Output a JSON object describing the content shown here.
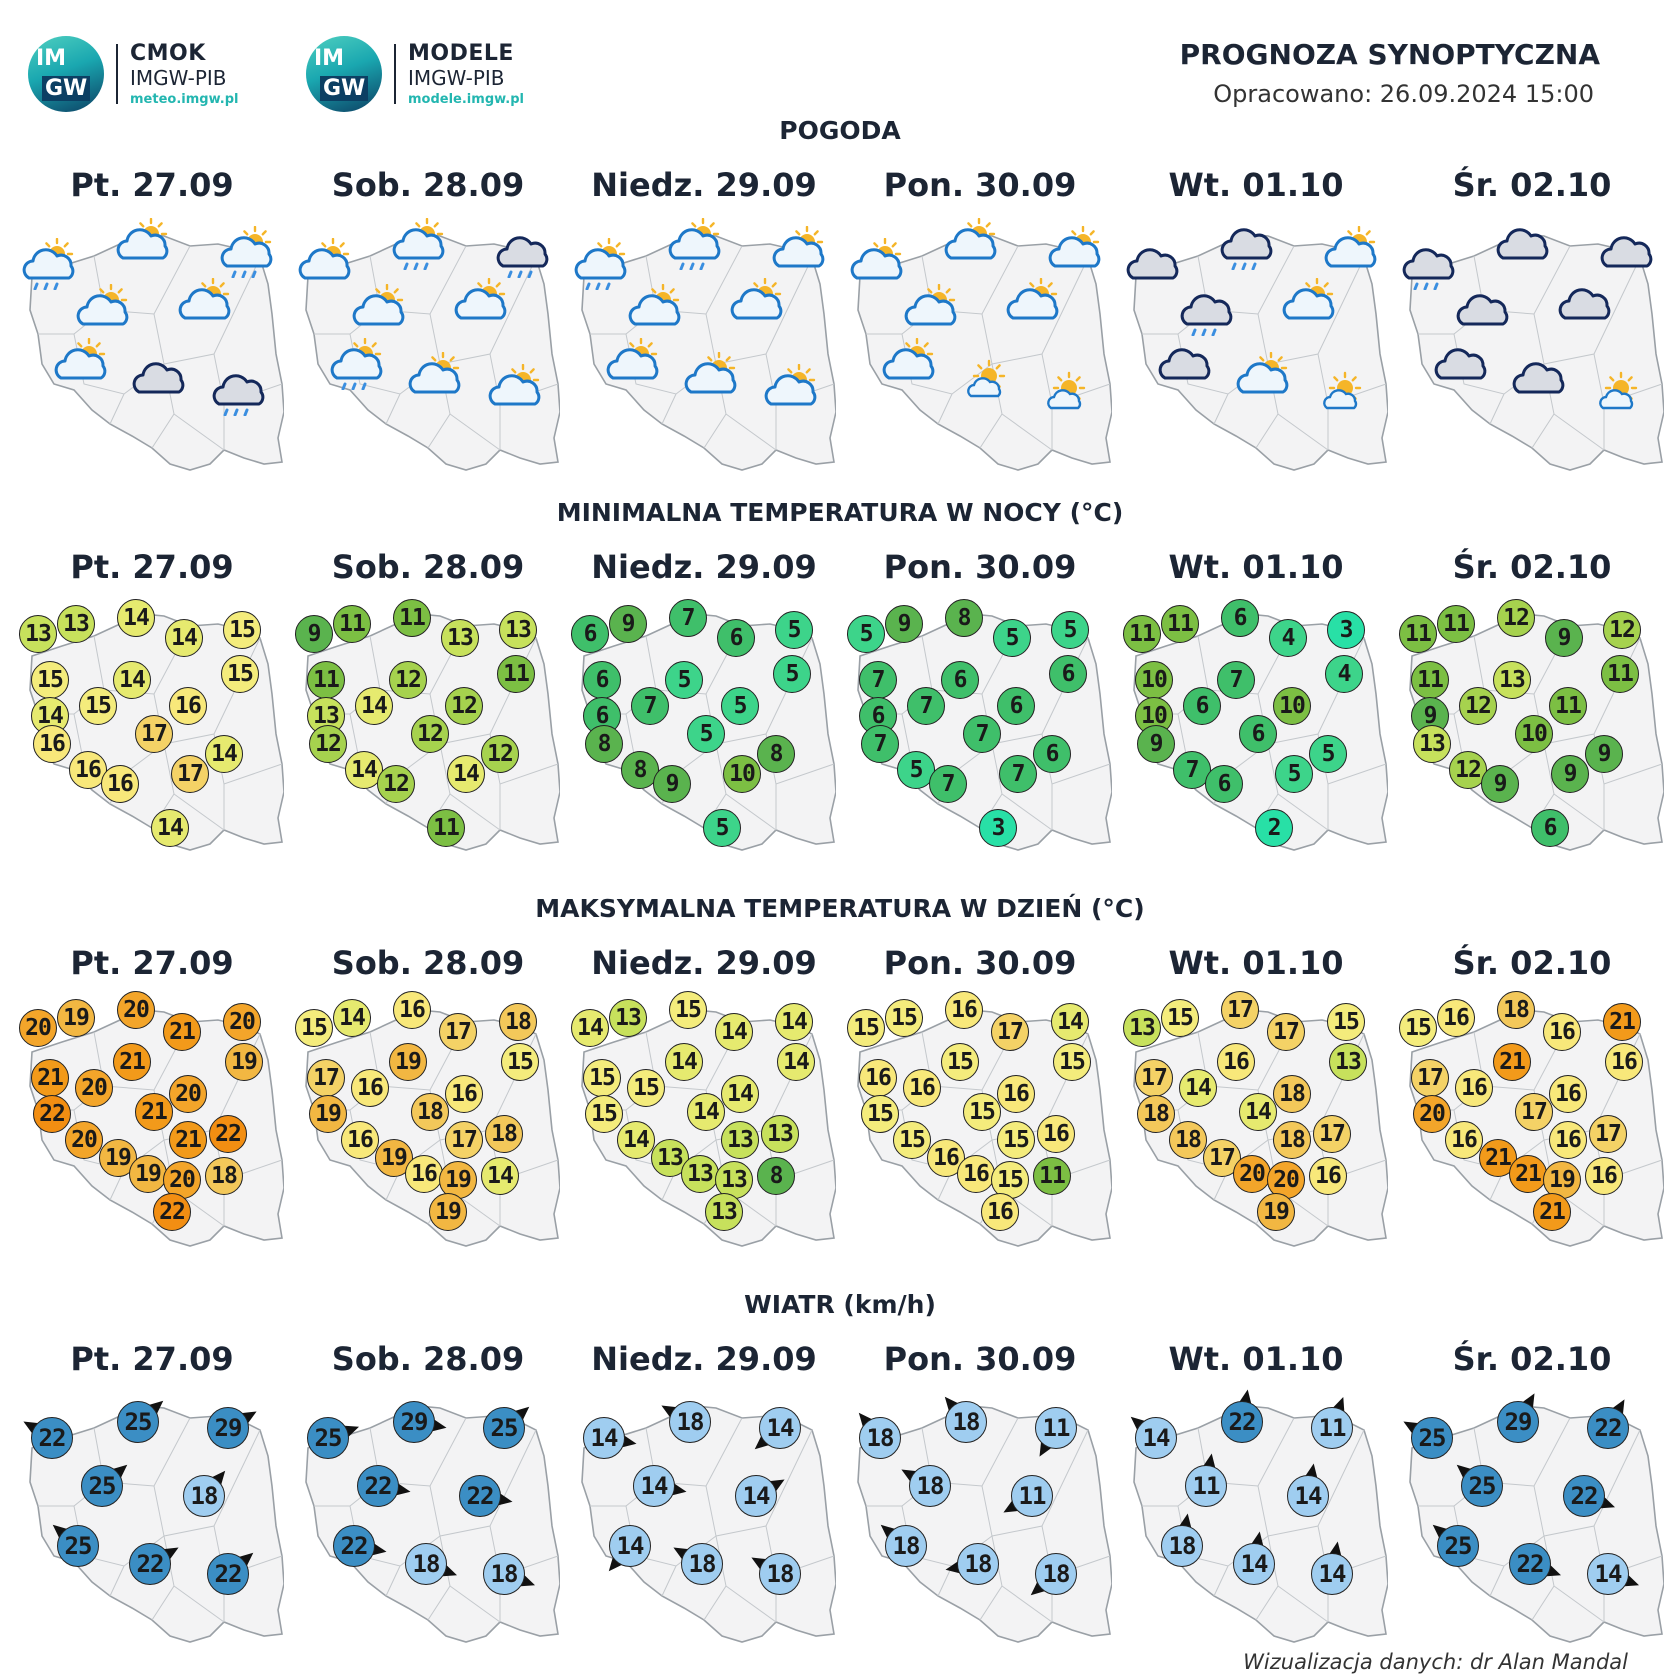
{
  "header": {
    "logo1": {
      "title": "CMOK",
      "sub": "IMGW-PIB",
      "url": "meteo.imgw.pl",
      "mark_top": "IM",
      "mark_bottom": "GW"
    },
    "logo2": {
      "title": "MODELE",
      "sub": "IMGW-PIB",
      "url": "modele.imgw.pl",
      "mark_top": "IM",
      "mark_bottom": "GW"
    },
    "title": "PROGNOZA SYNOPTYCZNA",
    "issued": "Opracowano: 26.09.2024 15:00"
  },
  "days": [
    "Pt. 27.09",
    "Sob. 28.09",
    "Niedz. 29.09",
    "Pon. 30.09",
    "Wt. 01.10",
    "Śr. 02.10"
  ],
  "sections": {
    "weather": {
      "title": "POGODA"
    },
    "tmin": {
      "title": "MINIMALNA TEMPERATURA W NOCY (°C)"
    },
    "tmax": {
      "title": "MAKSYMALNA TEMPERATURA W DZIEŃ (°C)"
    },
    "wind": {
      "title": "WIATR (km/h)"
    }
  },
  "weather": [
    [
      "partly-cloudy-rain",
      "partly-cloudy",
      "partly-cloudy-rain",
      "partly-cloudy",
      "partly-cloudy",
      "partly-cloudy",
      "cloudy",
      "cloudy-rain"
    ],
    [
      "partly-cloudy",
      "partly-cloudy-rain",
      "cloudy-rain",
      "partly-cloudy",
      "partly-cloudy",
      "partly-cloudy-rain",
      "partly-cloudy",
      "partly-cloudy"
    ],
    [
      "partly-cloudy-rain",
      "partly-cloudy-rain",
      "partly-cloudy",
      "partly-cloudy",
      "partly-cloudy",
      "partly-cloudy",
      "partly-cloudy",
      "partly-cloudy"
    ],
    [
      "partly-cloudy",
      "partly-cloudy",
      "partly-cloudy",
      "partly-cloudy",
      "partly-cloudy",
      "partly-cloudy",
      "sun-small-cloud",
      "sun-small-cloud"
    ],
    [
      "cloudy",
      "cloudy-rain",
      "partly-cloudy",
      "cloudy-rain",
      "partly-cloudy",
      "cloudy",
      "partly-cloudy",
      "sun-small-cloud"
    ],
    [
      "cloudy-rain",
      "cloudy",
      "cloudy",
      "cloudy",
      "cloudy",
      "cloudy",
      "cloudy",
      "sun-small-cloud"
    ]
  ],
  "tmin": [
    [
      13,
      13,
      14,
      14,
      15,
      15,
      14,
      15,
      14,
      15,
      16,
      16,
      17,
      14,
      16,
      16,
      17,
      14
    ],
    [
      9,
      11,
      11,
      13,
      13,
      11,
      12,
      11,
      13,
      14,
      12,
      12,
      12,
      12,
      14,
      12,
      14,
      11
    ],
    [
      6,
      9,
      7,
      6,
      5,
      6,
      5,
      5,
      6,
      7,
      5,
      8,
      5,
      8,
      8,
      9,
      10,
      5
    ],
    [
      5,
      9,
      8,
      5,
      5,
      7,
      6,
      6,
      6,
      7,
      6,
      7,
      7,
      6,
      5,
      7,
      7,
      3
    ],
    [
      11,
      11,
      6,
      4,
      3,
      10,
      7,
      4,
      10,
      6,
      10,
      9,
      6,
      5,
      7,
      6,
      5,
      2
    ],
    [
      11,
      11,
      12,
      9,
      12,
      11,
      13,
      11,
      9,
      12,
      11,
      13,
      10,
      9,
      12,
      9,
      9,
      6
    ]
  ],
  "tmax": [
    [
      20,
      19,
      20,
      21,
      20,
      19,
      21,
      21,
      20,
      20,
      22,
      21,
      20,
      19,
      21,
      22,
      19,
      20,
      18,
      22
    ],
    [
      15,
      14,
      16,
      17,
      18,
      15,
      17,
      19,
      16,
      16,
      19,
      18,
      16,
      19,
      17,
      18,
      16,
      19,
      14,
      19
    ],
    [
      14,
      13,
      15,
      14,
      14,
      14,
      15,
      14,
      15,
      14,
      15,
      14,
      14,
      13,
      13,
      13,
      13,
      13,
      8,
      13
    ],
    [
      15,
      15,
      16,
      17,
      14,
      15,
      16,
      15,
      16,
      16,
      15,
      15,
      15,
      16,
      15,
      16,
      16,
      15,
      11,
      16
    ],
    [
      13,
      15,
      17,
      17,
      15,
      13,
      17,
      16,
      14,
      18,
      18,
      14,
      18,
      17,
      18,
      17,
      20,
      20,
      16,
      19
    ],
    [
      15,
      16,
      18,
      16,
      21,
      16,
      17,
      21,
      16,
      16,
      20,
      17,
      16,
      21,
      16,
      17,
      21,
      19,
      16,
      21
    ]
  ],
  "wind": [
    [
      22,
      25,
      29,
      25,
      18,
      25,
      22,
      22
    ],
    [
      25,
      29,
      25,
      22,
      22,
      22,
      18,
      18
    ],
    [
      14,
      18,
      14,
      14,
      14,
      14,
      18,
      18
    ],
    [
      18,
      18,
      11,
      18,
      11,
      18,
      18,
      18
    ],
    [
      14,
      22,
      11,
      11,
      14,
      18,
      14,
      14
    ],
    [
      25,
      29,
      22,
      25,
      22,
      25,
      22,
      14
    ]
  ],
  "colors": {
    "map_fill": "#f3f3f4",
    "map_stroke": "#9aa0a6",
    "cloud_light": "#eef6fc",
    "cloud_stroke": "#1e78c8",
    "cloud_dark_fill": "#d9dce3",
    "cloud_dark_stroke": "#14285a",
    "sun": "#f5b528",
    "rain": "#3a8ee0",
    "wind_dark": "#3b8ec4",
    "wind_light": "#9fcdf0",
    "arrow": "#111111"
  },
  "credit": "Wizualizacja danych: dr Alan Mandal"
}
